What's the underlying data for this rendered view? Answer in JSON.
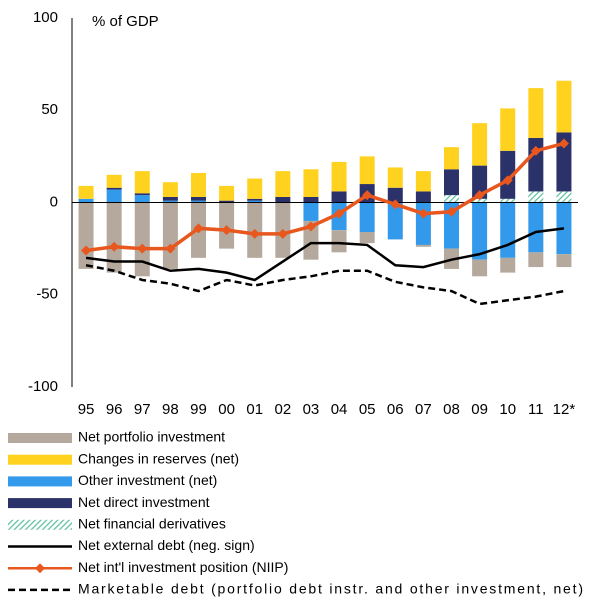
{
  "chart_data": {
    "type": "bar",
    "y_axis_label": "% of GDP",
    "categories": [
      "95",
      "96",
      "97",
      "98",
      "99",
      "00",
      "01",
      "02",
      "03",
      "04",
      "05",
      "06",
      "07",
      "08",
      "09",
      "10",
      "11",
      "12*"
    ],
    "ylim": [
      -100,
      100
    ],
    "yticks": [
      -100,
      -50,
      0,
      50,
      100
    ],
    "series": [
      {
        "name": "Net portfolio investment",
        "mark": "bar",
        "color": "#b5a99d",
        "values": [
          -36,
          -38,
          -40,
          -36,
          -30,
          -25,
          -30,
          -30,
          -21,
          -12,
          -6,
          0,
          -1,
          -11,
          -9,
          -8,
          -8,
          -7
        ]
      },
      {
        "name": "Changes in reserves (net)",
        "mark": "bar",
        "color": "#ffd21f",
        "values": [
          7,
          7,
          12,
          8,
          13,
          8,
          11,
          14,
          15,
          16,
          15,
          11,
          11,
          12,
          23,
          23,
          27,
          28
        ]
      },
      {
        "name": "Other investment (net)",
        "mark": "bar",
        "color": "#3399ea",
        "values": [
          2,
          7,
          4,
          1,
          1,
          0,
          1,
          0,
          -10,
          -15,
          -16,
          -20,
          -23,
          -25,
          -31,
          -30,
          -27,
          -28
        ]
      },
      {
        "name": "Net direct investment",
        "mark": "bar",
        "color": "#2b3169",
        "values": [
          0,
          1,
          1,
          2,
          2,
          1,
          1,
          3,
          3,
          6,
          10,
          8,
          6,
          14,
          18,
          26,
          29,
          32
        ]
      },
      {
        "name": "Net financial derivatives",
        "mark": "hatched-bar",
        "color": "#5dc0a0",
        "values": [
          0,
          0,
          0,
          0,
          0,
          0,
          0,
          0,
          0,
          0,
          0,
          0,
          0,
          4,
          2,
          2,
          6,
          6
        ]
      },
      {
        "name": "Net external debt (neg. sign)",
        "mark": "line",
        "color": "#000000",
        "values": [
          -30,
          -32,
          -32,
          -37,
          -36,
          -38,
          -42,
          -32,
          -22,
          -22,
          -23,
          -34,
          -35,
          -31,
          -28,
          -23,
          -16,
          -14
        ]
      },
      {
        "name": "Net int'l investment position (NIIP)",
        "mark": "marker-line",
        "color": "#e8571e",
        "values": [
          -26,
          -24,
          -25,
          -25,
          -14,
          -15,
          -17,
          -17,
          -13,
          -6,
          4,
          -1,
          -6,
          -5,
          4,
          12,
          28,
          32
        ]
      },
      {
        "name": "Marketable debt (portfolio debt instr. and other investment, net)",
        "mark": "dashed-line",
        "color": "#000000",
        "values": [
          -34,
          -37,
          -42,
          -44,
          -48,
          -42,
          -45,
          -42,
          -40,
          -37,
          -37,
          -43,
          -46,
          -48,
          -55,
          -53,
          -51,
          -48
        ]
      }
    ]
  }
}
